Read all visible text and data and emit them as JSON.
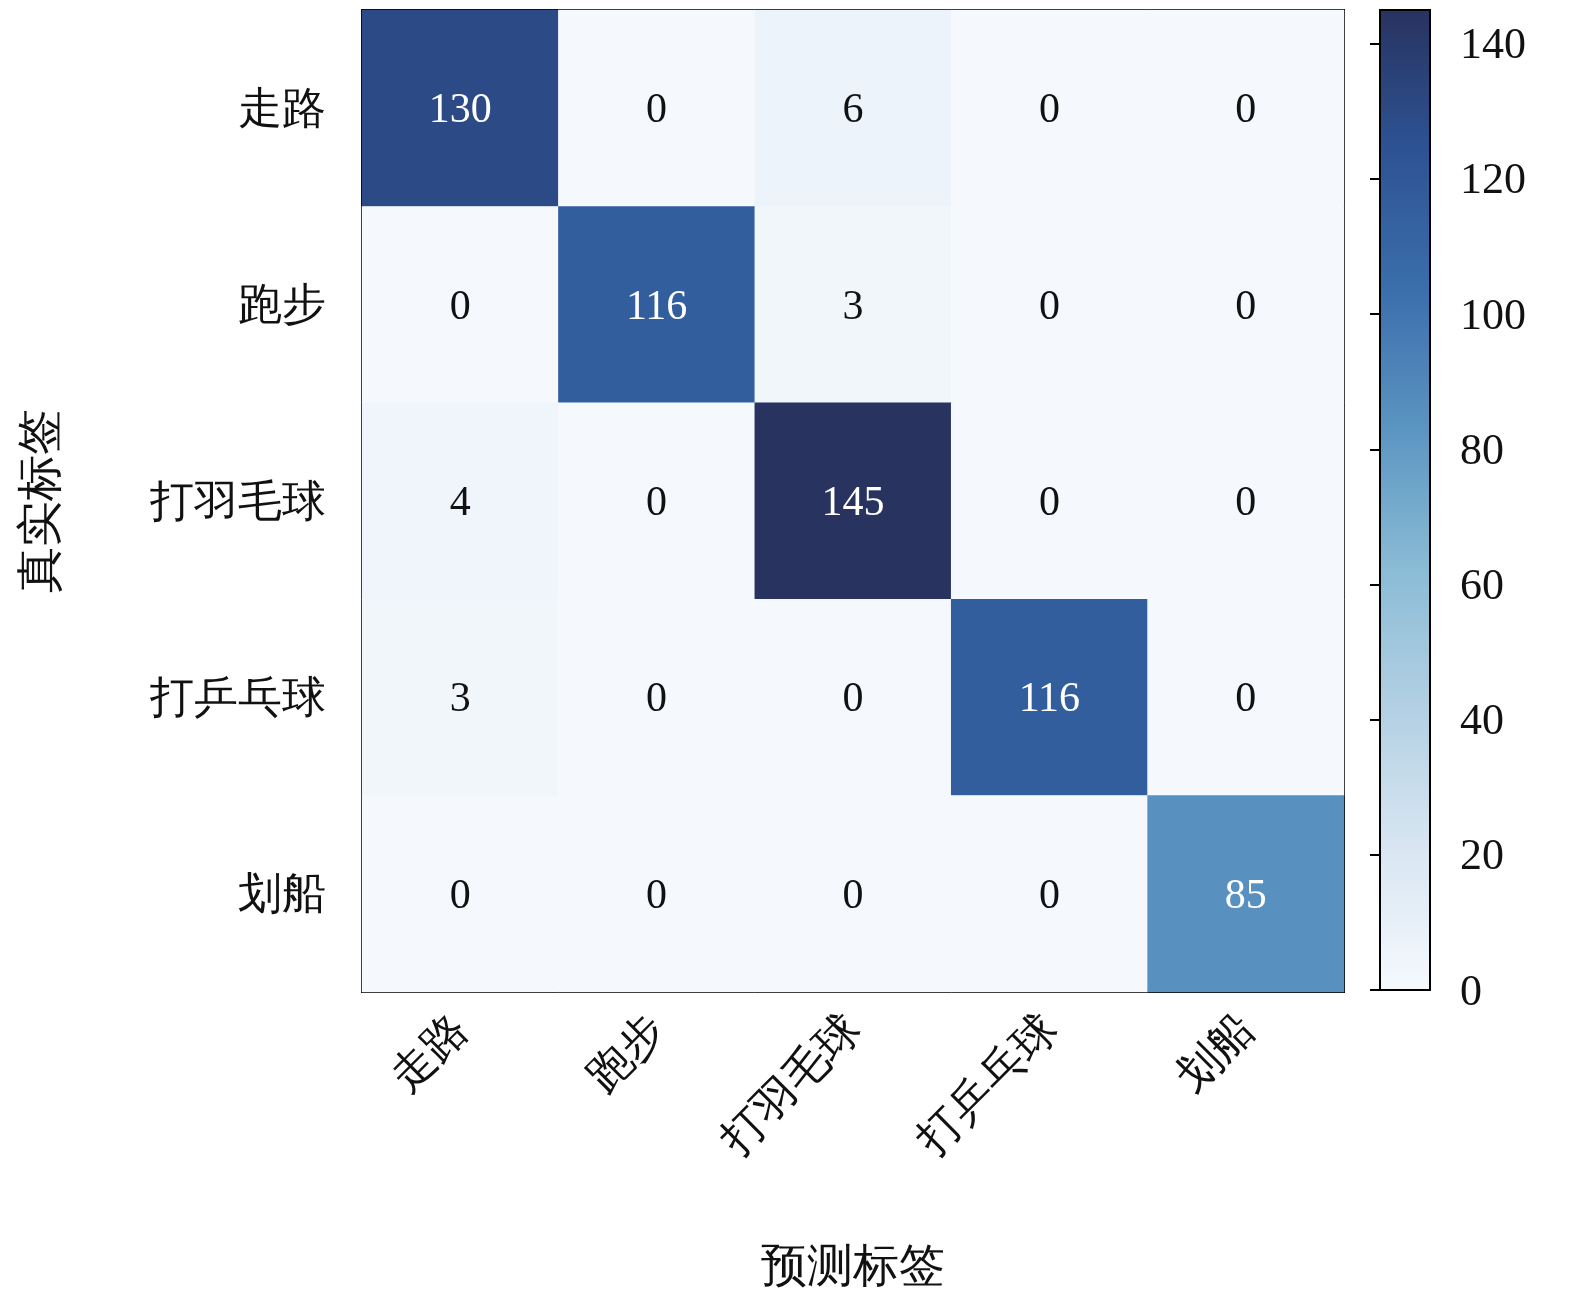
{
  "chart_data": {
    "type": "heatmap",
    "xlabel": "预测标签",
    "ylabel": "真实标签",
    "categories": [
      "走路",
      "跑步",
      "打羽毛球",
      "打乒乓球",
      "划船"
    ],
    "y_categories": [
      "走路",
      "跑步",
      "打羽毛球",
      "打乒乓球",
      "划船"
    ],
    "cells": [
      [
        130,
        0,
        6,
        0,
        0
      ],
      [
        0,
        116,
        3,
        0,
        0
      ],
      [
        4,
        0,
        145,
        0,
        0
      ],
      [
        3,
        0,
        0,
        116,
        0
      ],
      [
        0,
        0,
        0,
        0,
        85
      ]
    ],
    "data_labels": true,
    "clim": [
      0,
      145
    ],
    "cticks": [
      0,
      20,
      40,
      60,
      80,
      100,
      120,
      140
    ]
  }
}
